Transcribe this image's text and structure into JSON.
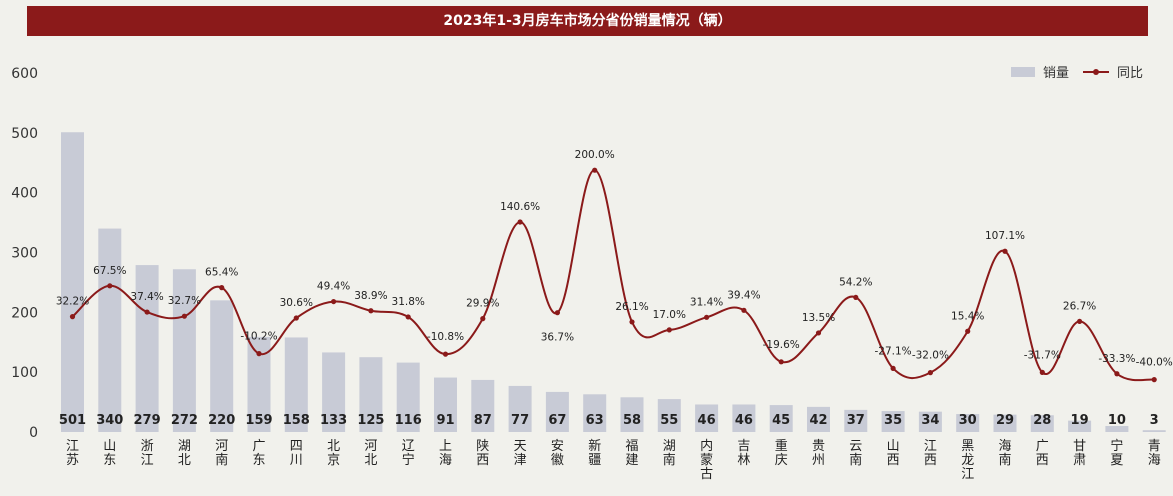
{
  "header": {
    "title": "2023年1-3月房车市场分省份销量情况（辆）"
  },
  "legend": {
    "bar_label": "销量",
    "line_label": "同比"
  },
  "colors": {
    "bar": "#c8cbd6",
    "line": "#8b1a1a",
    "title_bg": "#8b1a1a"
  },
  "chart_data": {
    "type": "bar",
    "categories": [
      "江苏",
      "山东",
      "浙江",
      "湖北",
      "河南",
      "广东",
      "四川",
      "北京",
      "河北",
      "辽宁",
      "上海",
      "陕西",
      "天津",
      "安徽",
      "新疆",
      "福建",
      "湖南",
      "内蒙古",
      "吉林",
      "重庆",
      "贵州",
      "云南",
      "山西",
      "江西",
      "黑龙江",
      "海南",
      "广西",
      "甘肃",
      "宁夏",
      "青海"
    ],
    "series": [
      {
        "name": "销量",
        "type": "bar",
        "values": [
          501,
          340,
          279,
          272,
          220,
          159,
          158,
          133,
          125,
          116,
          91,
          87,
          77,
          67,
          63,
          58,
          55,
          46,
          46,
          45,
          42,
          37,
          35,
          34,
          30,
          29,
          28,
          19,
          10,
          3
        ]
      },
      {
        "name": "同比",
        "type": "line",
        "values": [
          32.2,
          67.5,
          37.4,
          32.7,
          65.4,
          -10.2,
          30.6,
          49.4,
          38.9,
          31.8,
          -10.8,
          29.9,
          140.6,
          36.7,
          200.0,
          26.1,
          17.0,
          31.4,
          39.4,
          -19.6,
          13.5,
          54.2,
          -27.1,
          -32.0,
          15.4,
          107.1,
          -31.7,
          26.7,
          -33.3,
          -40.0
        ],
        "labels": [
          "32.2%",
          "67.5%",
          "37.4%",
          "32.7%",
          "65.4%",
          "-10.2%",
          "30.6%",
          "49.4%",
          "38.9%",
          "31.8%",
          "-10.8%",
          "29.9%",
          "140.6%",
          "36.7%",
          "200.0%",
          "26.1%",
          "17.0%",
          "31.4%",
          "39.4%",
          "-19.6%",
          "13.5%",
          "54.2%",
          "-27.1%",
          "-32.0%",
          "15.4%",
          "107.1%",
          "-31.7%",
          "26.7%",
          "-33.3%",
          "-40.0%"
        ]
      }
    ],
    "yticks": [
      "0",
      "100",
      "200",
      "300",
      "400",
      "500",
      "600"
    ],
    "ylim": [
      0,
      600
    ]
  }
}
